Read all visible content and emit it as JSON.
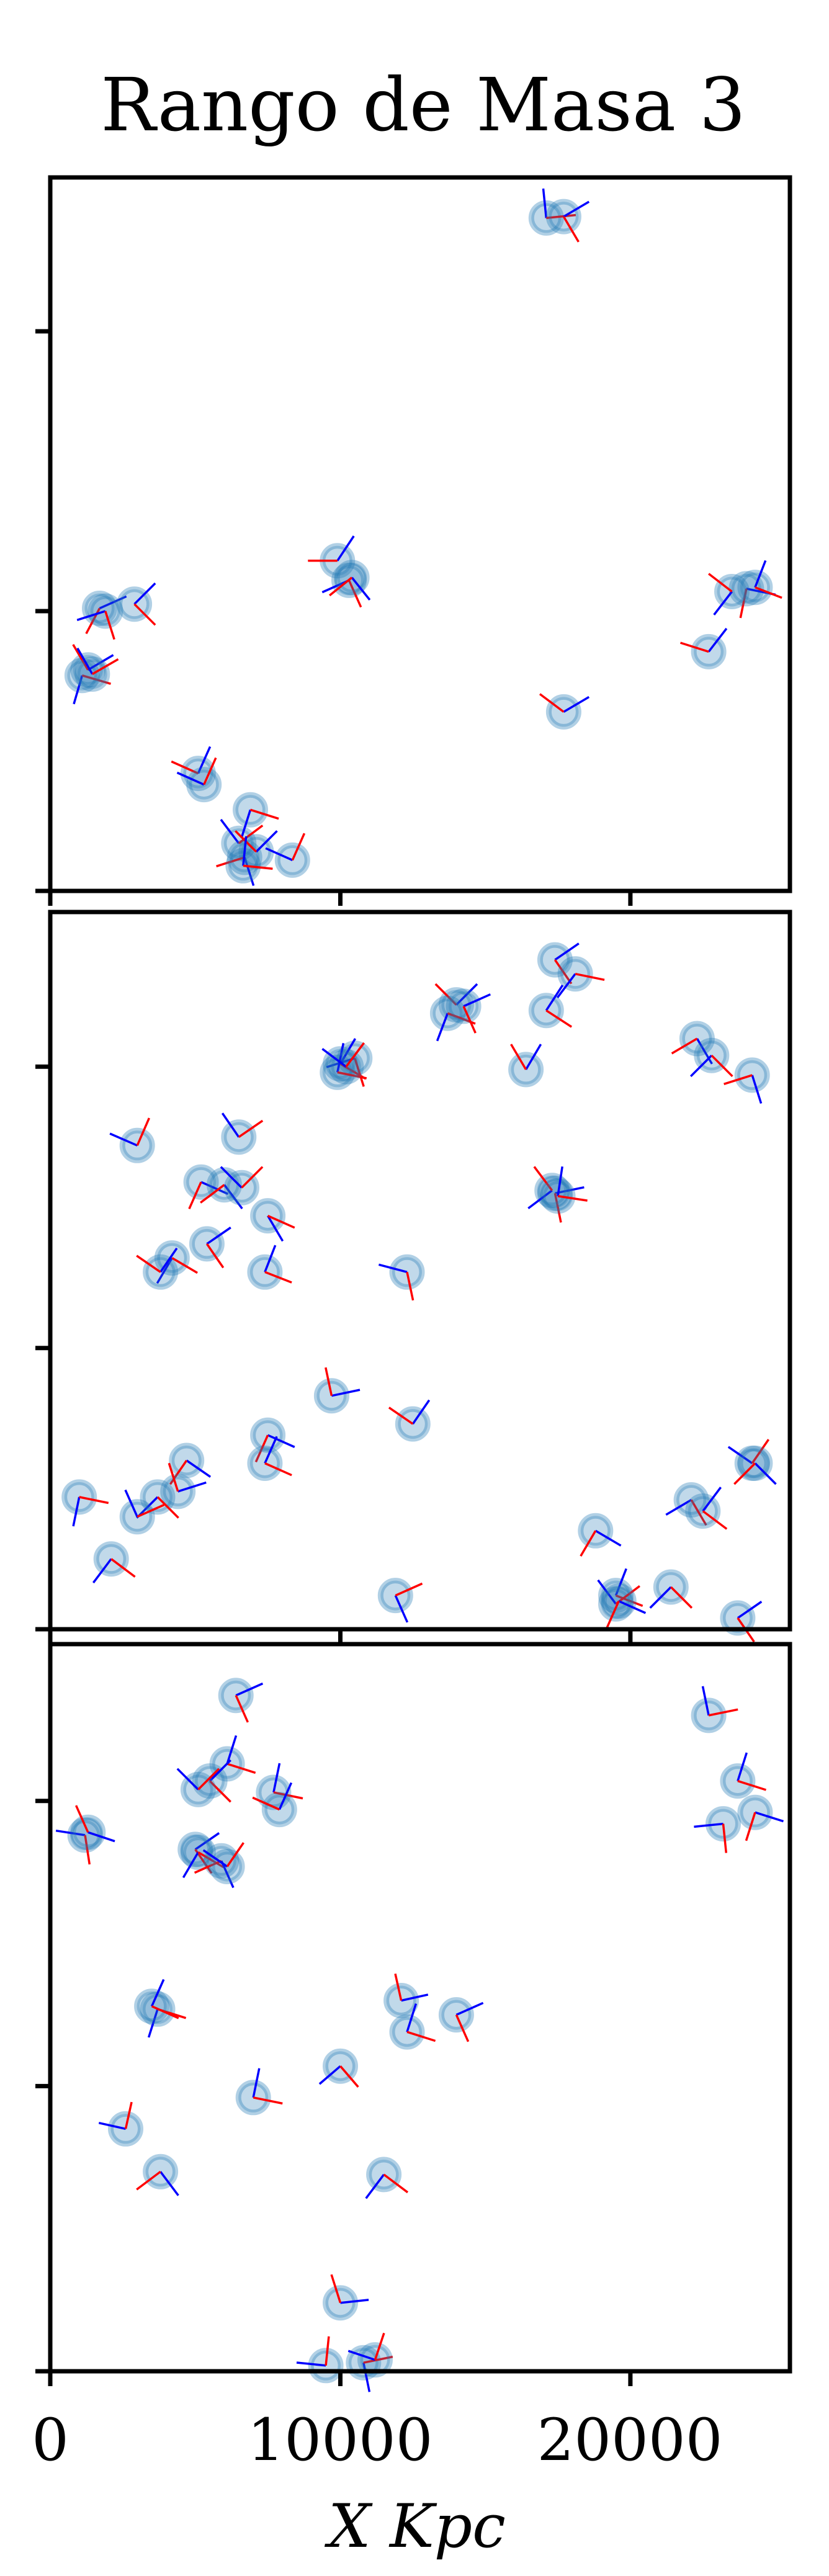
{
  "chart_data": {
    "type": "scatter",
    "title": "Rango de Masa 3",
    "xlabel": "X Kpc",
    "ylabel": "",
    "xlim": [
      0,
      25500
    ],
    "x_ticks": [
      0,
      10000,
      20000
    ],
    "x_tick_labels": [
      "0",
      "10000",
      "20000"
    ],
    "grid": false,
    "legend": "none",
    "colors": {
      "marker_fill": "#1f77b4",
      "marker_edge": "#1f77b4",
      "vector_a": "#0000ff",
      "vector_b": "#ff0000"
    },
    "panels": [
      {
        "name": "top",
        "ylim": [
          0,
          25500
        ],
        "y_ticks": [
          0,
          10000,
          20000
        ],
        "points": [
          [
            17100,
            24050,
            20,
            -0.1,
            0.99,
            0.99,
            0.1
          ],
          [
            17700,
            24100,
            22,
            0.85,
            0.5,
            0.5,
            -0.85
          ],
          [
            9900,
            11800,
            20,
            0.55,
            0.83,
            -0.99,
            0.0
          ],
          [
            10300,
            11100,
            22,
            -0.9,
            -0.4,
            0.4,
            -0.9
          ],
          [
            10400,
            11200,
            16,
            0.6,
            -0.75,
            -0.75,
            -0.6
          ],
          [
            24000,
            10800,
            20,
            0.98,
            -0.2,
            -0.2,
            -0.98
          ],
          [
            24300,
            10850,
            16,
            0.35,
            0.9,
            0.9,
            -0.35
          ],
          [
            23500,
            10700,
            18,
            -0.6,
            -0.78,
            -0.78,
            0.6
          ],
          [
            1700,
            10100,
            20,
            0.9,
            0.4,
            -0.45,
            -0.85
          ],
          [
            1900,
            10000,
            18,
            -0.95,
            -0.3,
            0.3,
            -0.95
          ],
          [
            2900,
            10250,
            18,
            0.7,
            0.7,
            0.7,
            -0.7
          ],
          [
            1100,
            7700,
            18,
            -0.28,
            -0.96,
            0.96,
            -0.28
          ],
          [
            1300,
            7900,
            20,
            0.85,
            0.5,
            -0.5,
            0.85
          ],
          [
            1450,
            7750,
            16,
            -0.5,
            0.87,
            0.87,
            0.5
          ],
          [
            22700,
            8550,
            20,
            0.6,
            0.78,
            -0.95,
            0.3
          ],
          [
            17700,
            6400,
            20,
            0.85,
            0.5,
            -0.8,
            0.6
          ],
          [
            5100,
            4200,
            20,
            0.4,
            0.9,
            -0.9,
            0.4
          ],
          [
            5300,
            3800,
            18,
            -0.9,
            0.4,
            0.4,
            0.9
          ],
          [
            6500,
            1700,
            20,
            -0.6,
            0.8,
            0.8,
            0.6
          ],
          [
            6700,
            1200,
            22,
            0.3,
            -0.95,
            -0.95,
            -0.3
          ],
          [
            6900,
            2900,
            20,
            -0.3,
            -0.95,
            0.95,
            -0.3
          ],
          [
            7100,
            1400,
            16,
            0.7,
            0.7,
            -0.7,
            0.7
          ],
          [
            6650,
            900,
            18,
            0.1,
            0.99,
            0.99,
            -0.1
          ],
          [
            8350,
            1100,
            18,
            -0.9,
            0.4,
            0.4,
            0.9
          ]
        ]
      },
      {
        "name": "middle",
        "ylim": [
          0,
          25500
        ],
        "y_ticks": [
          0,
          10000,
          20000
        ],
        "points": [
          [
            17400,
            23800,
            20,
            0.8,
            0.55,
            0.55,
            -0.8
          ],
          [
            18100,
            23300,
            22,
            -0.6,
            -0.8,
            0.98,
            -0.2
          ],
          [
            17100,
            22000,
            20,
            0.55,
            0.85,
            0.85,
            -0.55
          ],
          [
            14000,
            22200,
            20,
            0.7,
            0.7,
            -0.7,
            0.7
          ],
          [
            13700,
            21900,
            22,
            -0.35,
            -0.93,
            0.93,
            -0.35
          ],
          [
            14250,
            22150,
            16,
            0.9,
            0.4,
            0.4,
            -0.9
          ],
          [
            22300,
            21000,
            20,
            0.5,
            -0.85,
            -0.85,
            -0.5
          ],
          [
            22800,
            20400,
            22,
            -0.7,
            -0.7,
            0.7,
            -0.7
          ],
          [
            24200,
            19700,
            18,
            0.3,
            -0.95,
            -0.95,
            -0.3
          ],
          [
            10500,
            20300,
            20,
            -0.95,
            -0.3,
            0.3,
            -0.95
          ],
          [
            10000,
            20100,
            22,
            0.5,
            0.85,
            0.85,
            -0.5
          ],
          [
            9900,
            19800,
            16,
            0.2,
            0.98,
            0.98,
            -0.2
          ],
          [
            10200,
            20000,
            16,
            -0.8,
            0.6,
            0.6,
            0.8
          ],
          [
            16400,
            19900,
            20,
            0.5,
            0.85,
            -0.5,
            0.85
          ],
          [
            6500,
            17500,
            20,
            -0.55,
            0.8,
            0.8,
            0.55
          ],
          [
            3000,
            17200,
            20,
            -0.92,
            0.4,
            0.4,
            0.92
          ],
          [
            5200,
            15900,
            20,
            0.9,
            -0.4,
            -0.4,
            -0.9
          ],
          [
            6000,
            15800,
            22,
            0.6,
            -0.8,
            -0.8,
            -0.6
          ],
          [
            6600,
            15700,
            20,
            -0.7,
            0.7,
            0.7,
            0.7
          ],
          [
            7500,
            14700,
            20,
            0.5,
            -0.85,
            0.9,
            -0.4
          ],
          [
            17400,
            15500,
            20,
            0.98,
            0.2,
            0.2,
            -0.98
          ],
          [
            17300,
            15600,
            20,
            -0.8,
            -0.6,
            -0.6,
            0.8
          ],
          [
            17500,
            15400,
            16,
            0.15,
            0.99,
            0.99,
            -0.15
          ],
          [
            5400,
            13700,
            20,
            0.8,
            0.55,
            0.55,
            -0.8
          ],
          [
            4200,
            13200,
            20,
            -0.5,
            -0.85,
            0.85,
            -0.5
          ],
          [
            3800,
            12700,
            20,
            0.55,
            0.8,
            -0.8,
            0.55
          ],
          [
            7400,
            12700,
            20,
            0.35,
            0.9,
            0.9,
            -0.35
          ],
          [
            12300,
            12700,
            20,
            -0.95,
            0.25,
            0.2,
            -0.95
          ],
          [
            9700,
            8300,
            20,
            0.95,
            0.2,
            -0.2,
            0.95
          ],
          [
            12500,
            7300,
            20,
            0.55,
            0.8,
            -0.8,
            0.55
          ],
          [
            7500,
            6900,
            20,
            0.9,
            -0.4,
            -0.4,
            -0.9
          ],
          [
            7400,
            5900,
            22,
            0.4,
            0.9,
            0.9,
            -0.4
          ],
          [
            4700,
            6000,
            20,
            0.8,
            -0.55,
            -0.55,
            -0.8
          ],
          [
            4400,
            4900,
            20,
            0.95,
            0.3,
            -0.3,
            0.95
          ],
          [
            3700,
            4700,
            22,
            -0.7,
            -0.7,
            0.7,
            -0.7
          ],
          [
            3000,
            4000,
            20,
            -0.4,
            0.9,
            0.9,
            0.4
          ],
          [
            1000,
            4700,
            20,
            -0.2,
            -0.98,
            0.98,
            -0.2
          ],
          [
            2100,
            2500,
            20,
            -0.6,
            -0.8,
            0.8,
            -0.6
          ],
          [
            24200,
            5900,
            20,
            -0.8,
            0.55,
            0.55,
            0.8
          ],
          [
            24300,
            5900,
            16,
            0.7,
            -0.7,
            -0.7,
            -0.7
          ],
          [
            22100,
            4600,
            20,
            -0.85,
            -0.5,
            0.5,
            -0.85
          ],
          [
            22500,
            4200,
            22,
            0.6,
            0.8,
            0.8,
            -0.6
          ],
          [
            18800,
            3500,
            20,
            0.85,
            -0.5,
            -0.5,
            -0.85
          ],
          [
            19500,
            1200,
            20,
            0.35,
            0.9,
            0.9,
            -0.35
          ],
          [
            19500,
            900,
            22,
            -0.6,
            0.8,
            0.8,
            0.6
          ],
          [
            19600,
            1000,
            16,
            0.9,
            -0.4,
            -0.4,
            -0.9
          ],
          [
            21400,
            1500,
            20,
            -0.7,
            -0.7,
            0.7,
            -0.7
          ],
          [
            11900,
            1200,
            20,
            0.4,
            -0.9,
            0.9,
            0.4
          ],
          [
            23700,
            400,
            20,
            0.8,
            0.55,
            0.55,
            -0.8
          ]
        ]
      },
      {
        "name": "bottom",
        "ylim": [
          0,
          25500
        ],
        "y_ticks": [
          0,
          10000,
          20000
        ],
        "points": [
          [
            6400,
            23700,
            20,
            0.9,
            0.4,
            0.4,
            -0.9
          ],
          [
            22700,
            23000,
            20,
            -0.2,
            0.98,
            0.98,
            0.2
          ],
          [
            23700,
            20700,
            20,
            0.3,
            0.95,
            0.95,
            -0.3
          ],
          [
            24300,
            19600,
            20,
            0.95,
            -0.3,
            -0.3,
            -0.95
          ],
          [
            23200,
            19200,
            20,
            -0.98,
            -0.1,
            0.1,
            -0.98
          ],
          [
            6100,
            21300,
            20,
            0.3,
            0.95,
            0.95,
            -0.3
          ],
          [
            5500,
            20700,
            20,
            0.7,
            0.7,
            0.7,
            -0.7
          ],
          [
            5100,
            20400,
            22,
            -0.7,
            0.7,
            0.7,
            0.7
          ],
          [
            7700,
            20300,
            20,
            0.2,
            0.98,
            0.98,
            -0.2
          ],
          [
            7900,
            19700,
            20,
            0.4,
            0.9,
            -0.9,
            0.4
          ],
          [
            1200,
            18800,
            20,
            -0.98,
            0.15,
            0.15,
            -0.98
          ],
          [
            1300,
            18900,
            18,
            0.9,
            -0.3,
            -0.4,
            0.9
          ],
          [
            5000,
            18300,
            20,
            0.8,
            0.55,
            0.55,
            -0.8
          ],
          [
            5100,
            18200,
            22,
            -0.5,
            -0.85,
            0.85,
            -0.5
          ],
          [
            5900,
            17900,
            20,
            0.4,
            -0.9,
            -0.9,
            -0.4
          ],
          [
            6100,
            17700,
            18,
            -0.8,
            0.55,
            0.55,
            0.8
          ],
          [
            3700,
            12700,
            20,
            -0.3,
            -0.95,
            0.95,
            -0.3
          ],
          [
            3500,
            12800,
            22,
            0.4,
            0.9,
            0.9,
            -0.4
          ],
          [
            12100,
            13000,
            20,
            0.9,
            0.2,
            -0.2,
            0.9
          ],
          [
            12300,
            11900,
            20,
            0.3,
            0.95,
            0.95,
            -0.3
          ],
          [
            14000,
            12500,
            20,
            0.9,
            0.4,
            0.4,
            -0.9
          ],
          [
            10000,
            10700,
            20,
            -0.7,
            -0.6,
            0.6,
            -0.7
          ],
          [
            7000,
            9600,
            20,
            0.2,
            0.98,
            0.98,
            -0.2
          ],
          [
            2600,
            8500,
            20,
            -0.9,
            0.2,
            0.2,
            0.9
          ],
          [
            3800,
            7000,
            20,
            0.6,
            -0.8,
            -0.8,
            -0.6
          ],
          [
            11500,
            6900,
            20,
            -0.6,
            -0.8,
            0.8,
            -0.6
          ],
          [
            10000,
            2400,
            20,
            0.95,
            0.1,
            -0.3,
            0.95
          ],
          [
            9500,
            200,
            20,
            -0.98,
            0.1,
            0.1,
            0.98
          ],
          [
            10800,
            300,
            20,
            0.2,
            -0.98,
            0.98,
            0.2
          ],
          [
            11200,
            400,
            18,
            -0.9,
            0.3,
            0.3,
            0.9
          ]
        ]
      }
    ]
  }
}
